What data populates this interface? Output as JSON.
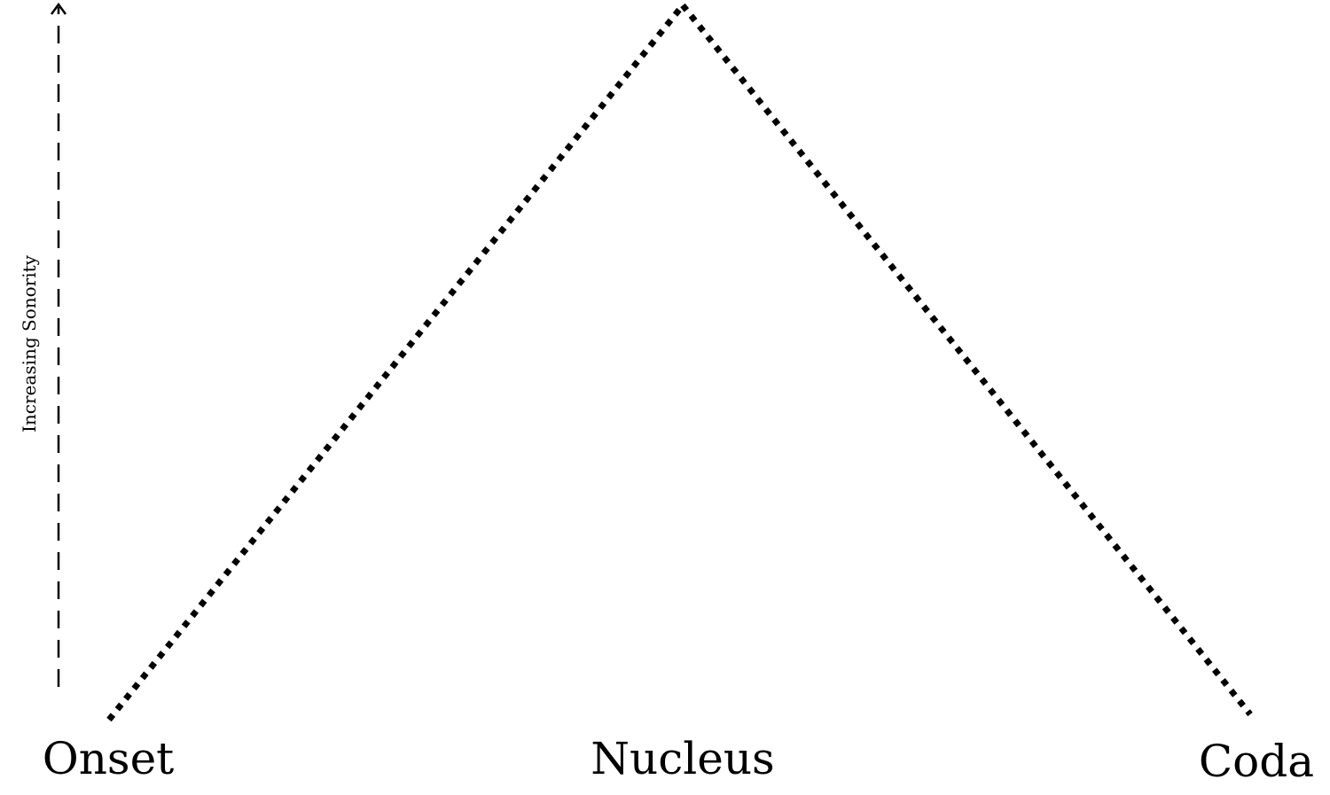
{
  "diagram": {
    "axis_label": "Increasing Sonority",
    "nodes": {
      "onset": "Onset",
      "nucleus": "Nucleus",
      "coda": "Coda"
    },
    "colors": {
      "stroke": "#000000",
      "background": "#ffffff"
    }
  }
}
